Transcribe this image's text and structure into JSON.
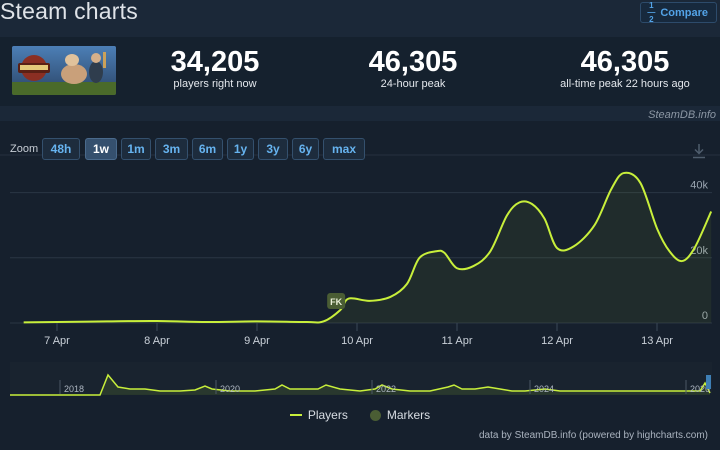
{
  "header": {
    "title": "Steam charts",
    "compare_label": "Compare",
    "compare_icon": "fraction-icon",
    "compare_icon_top": "1",
    "compare_icon_bottom": "2"
  },
  "stats": [
    {
      "value": "34,205",
      "label": "players right now"
    },
    {
      "value": "46,305",
      "label": "24-hour peak"
    },
    {
      "value": "46,305",
      "label": "all-time peak 22 hours ago"
    }
  ],
  "credit_top": "SteamDB.info",
  "zoom": {
    "label": "Zoom",
    "buttons": [
      "48h",
      "1w",
      "1m",
      "3m",
      "6m",
      "1y",
      "3y",
      "6y",
      "max"
    ],
    "active": "1w"
  },
  "colors": {
    "line": "#c8ef3b",
    "area": "#a8d22c",
    "marker": "#4a5d34",
    "accent": "#66b3ef"
  },
  "chart_data": {
    "type": "area",
    "series": [
      {
        "name": "Players",
        "points": [
          [
            "Apr 6 16:00",
            200
          ],
          [
            "Apr 7 00:00",
            300
          ],
          [
            "Apr 7 12:00",
            500
          ],
          [
            "Apr 8 00:00",
            600
          ],
          [
            "Apr 8 12:00",
            300
          ],
          [
            "Apr 9 00:00",
            500
          ],
          [
            "Apr 9 12:00",
            300
          ],
          [
            "Apr 9 16:00",
            500
          ],
          [
            "Apr 9 20:00",
            4000
          ],
          [
            "Apr 9 22:00",
            7500
          ],
          [
            "Apr 10 03:00",
            6800
          ],
          [
            "Apr 10 08:00",
            8000
          ],
          [
            "Apr 10 12:00",
            12000
          ],
          [
            "Apr 10 15:00",
            20000
          ],
          [
            "Apr 10 19:00",
            22000
          ],
          [
            "Apr 10 21:00",
            21500
          ],
          [
            "Apr 11 00:00",
            16800
          ],
          [
            "Apr 11 04:00",
            17500
          ],
          [
            "Apr 11 08:00",
            22000
          ],
          [
            "Apr 11 12:00",
            33000
          ],
          [
            "Apr 11 15:00",
            37000
          ],
          [
            "Apr 11 18:00",
            36500
          ],
          [
            "Apr 11 21:00",
            32000
          ],
          [
            "Apr 12 00:00",
            23000
          ],
          [
            "Apr 12 04:00",
            23500
          ],
          [
            "Apr 12 09:00",
            30000
          ],
          [
            "Apr 12 13:00",
            41000
          ],
          [
            "Apr 12 16:00",
            46000
          ],
          [
            "Apr 12 20:00",
            43000
          ],
          [
            "Apr 13 00:00",
            29000
          ],
          [
            "Apr 13 03:00",
            22000
          ],
          [
            "Apr 13 06:00",
            19000
          ],
          [
            "Apr 13 09:00",
            23000
          ],
          [
            "Apr 13 13:00",
            34205
          ]
        ]
      }
    ],
    "markers": [
      {
        "label": "FK",
        "x": "Apr 9 19:00"
      }
    ],
    "x_ticks": [
      "7 Apr",
      "8 Apr",
      "9 Apr",
      "10 Apr",
      "11 Apr",
      "12 Apr",
      "13 Apr"
    ],
    "y_ticks": [
      "0",
      "20k",
      "40k"
    ],
    "ylim": [
      0,
      50000
    ],
    "grid": true,
    "navigator": {
      "year_labels": [
        "2018",
        "2020",
        "2022",
        "2024",
        "2026"
      ]
    },
    "legend": [
      "Players",
      "Markers"
    ],
    "legend_position": "bottom-center"
  },
  "credit_bottom": "data by SteamDB.info (powered by highcharts.com)"
}
